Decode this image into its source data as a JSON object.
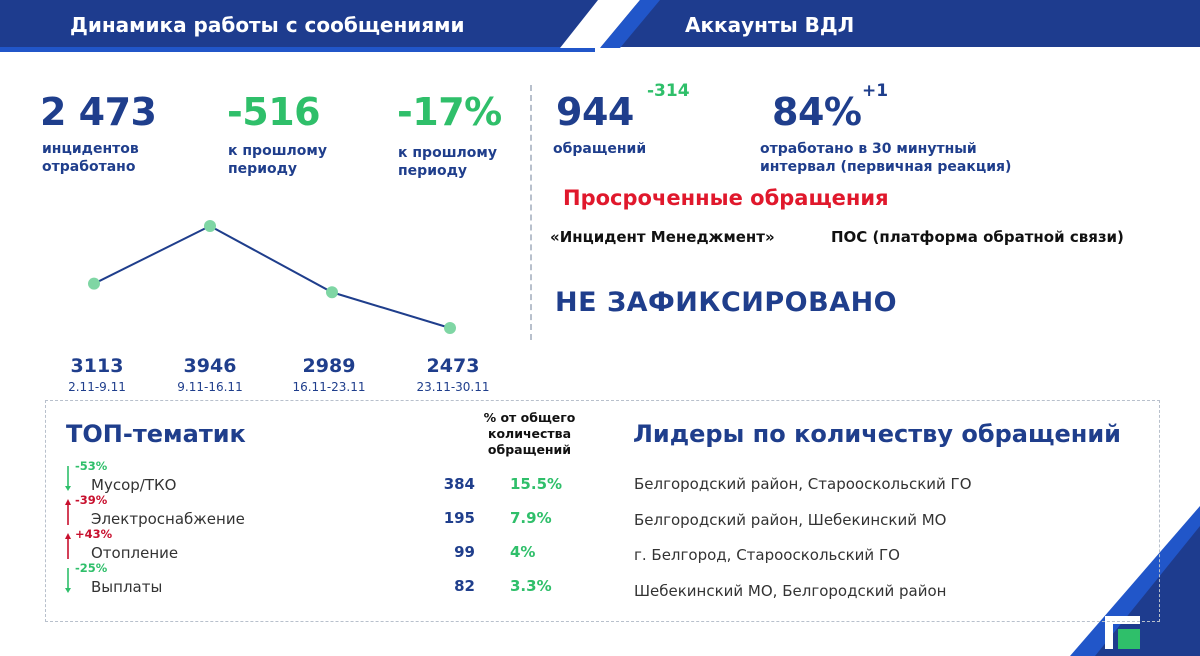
{
  "header": {
    "left_title": "Динамика работы с сообщениями",
    "right_title": "Аккаунты ВДЛ",
    "colors": {
      "dark_blue": "#1e3c8e",
      "accent_blue": "#2156c9"
    }
  },
  "kpis": {
    "incidents": {
      "value": "2 473",
      "caption_line1": "инцидентов",
      "caption_line2": "отработано"
    },
    "delta_abs": {
      "value": "-516",
      "caption_line1": "к прошлому",
      "caption_line2": "периоду"
    },
    "delta_pct": {
      "value": "-17%",
      "caption_line1": "к прошлому",
      "caption_line2": "периоду"
    }
  },
  "weekly_chart": {
    "chart_data": {
      "type": "line",
      "categories": [
        "2.11-9.11",
        "9.11-16.11",
        "16.11-23.11",
        "23.11-30.11"
      ],
      "values": [
        3113,
        3946,
        2989,
        2473
      ],
      "labels": [
        "3113",
        "3946",
        "2989",
        "2473"
      ],
      "colors": {
        "line": "#1f3e8c",
        "marker": "#7fd6a4"
      }
    }
  },
  "vdl": {
    "appeals": {
      "value": "944",
      "change": "-314",
      "caption": "обращений"
    },
    "reaction": {
      "value": "84%",
      "change": "+1",
      "caption_line1": "отработано в 30 минутный",
      "caption_line2": "интервал (первичная реакция)"
    },
    "overdue_title": "Просроченные обращения",
    "sources": [
      "«Инцидент Менеджмент»",
      "ПОС (платформа обратной связи)"
    ],
    "status": "НЕ ЗАФИКСИРОВАНО"
  },
  "topics": {
    "title": "ТОП-тематик",
    "pct_header_line1": "% от общего",
    "pct_header_line2": "количества",
    "pct_header_line3": "обращений",
    "rows": [
      {
        "change": "-53%",
        "direction": "down",
        "name": "Мусор/ТКО",
        "count": "384",
        "pct": "15.5%"
      },
      {
        "change": "-39%",
        "direction": "up",
        "name": "Электроснабжение",
        "count": "195",
        "pct": "7.9%"
      },
      {
        "change": "+43%",
        "direction": "up",
        "name": "Отопление",
        "count": "99",
        "pct": "4%"
      },
      {
        "change": "-25%",
        "direction": "down",
        "name": "Выплаты",
        "count": "82",
        "pct": "3.3%"
      }
    ]
  },
  "leaders": {
    "title": "Лидеры по количеству обращений",
    "rows": [
      "Белгородский район, Старооскольский ГО",
      "Белгородский район, Шебекинский МО",
      "г. Белгород, Старооскольский ГО",
      "Шебекинский МО, Белгородский район"
    ]
  }
}
